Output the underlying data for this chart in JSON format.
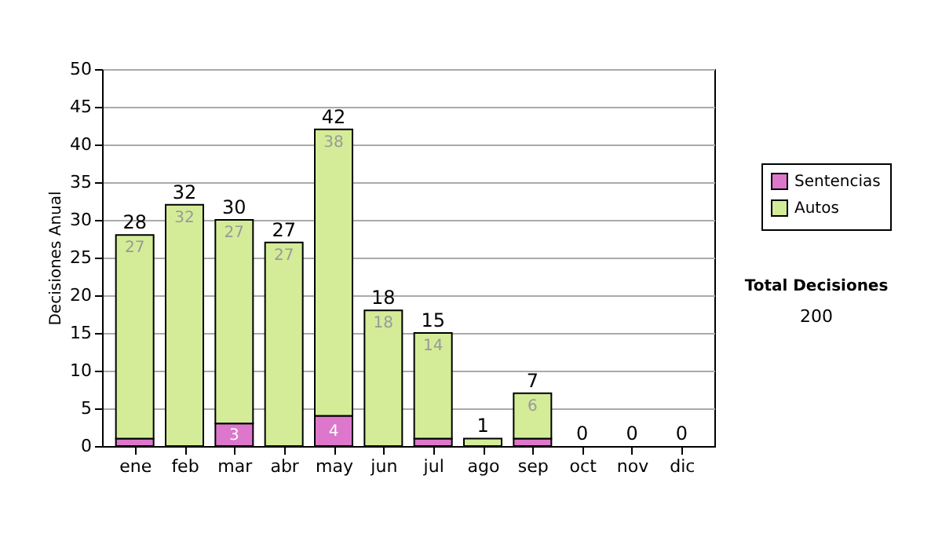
{
  "chart_data": {
    "type": "bar",
    "stacked": true,
    "ylabel": "Decisiones Anual",
    "categories": [
      "ene",
      "feb",
      "mar",
      "abr",
      "may",
      "jun",
      "jul",
      "ago",
      "sep",
      "oct",
      "nov",
      "dic"
    ],
    "series": [
      {
        "name": "Sentencias",
        "color": "#dd77cc",
        "values": [
          1,
          0,
          3,
          0,
          4,
          0,
          1,
          0,
          1,
          0,
          0,
          0
        ],
        "value_labels": [
          null,
          null,
          "3",
          null,
          "4",
          null,
          null,
          null,
          null,
          null,
          null,
          null
        ]
      },
      {
        "name": "Autos",
        "color": "#d4ec98",
        "values": [
          27,
          32,
          27,
          27,
          38,
          18,
          14,
          1,
          6,
          0,
          0,
          0
        ],
        "value_labels": [
          "27",
          "32",
          "27",
          "27",
          "38",
          "18",
          "14",
          null,
          "6",
          null,
          null,
          null
        ]
      }
    ],
    "totals": [
      "28",
      "32",
      "30",
      "27",
      "42",
      "18",
      "15",
      "1",
      "7",
      "0",
      "0",
      "0"
    ],
    "ylim": [
      0,
      50
    ],
    "yticks": [
      0,
      5,
      10,
      15,
      20,
      25,
      30,
      35,
      40,
      45,
      50
    ],
    "grid": "y",
    "legend": "right",
    "annotations": [
      "Total Decisiones",
      "200"
    ]
  }
}
